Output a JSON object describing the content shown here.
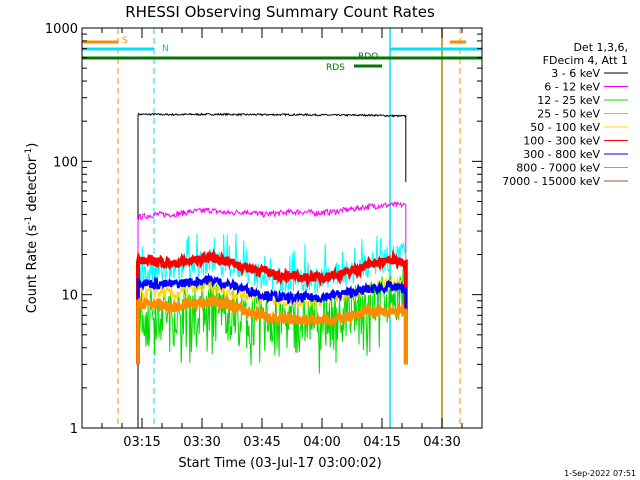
{
  "chart_data": {
    "type": "line",
    "title": "RHESSI Observing Summary Count Rates",
    "xlabel": "Start Time (03-Jul-17 03:00:02)",
    "ylabel_main": "Count Rate (s",
    "ylabel_sup1": "-1",
    "ylabel_mid": " detector",
    "ylabel_sup2": "-1",
    "ylabel_end": ")",
    "y_scale": "log",
    "ylim": [
      1,
      1000
    ],
    "xlim_minutes": [
      0,
      100
    ],
    "x_ticks": [
      {
        "m": 15,
        "label": "03:15"
      },
      {
        "m": 30,
        "label": "03:30"
      },
      {
        "m": 45,
        "label": "03:45"
      },
      {
        "m": 60,
        "label": "04:00"
      },
      {
        "m": 75,
        "label": "04:15"
      },
      {
        "m": 90,
        "label": "04:30"
      }
    ],
    "y_ticks": [
      {
        "v": 1,
        "label": "1"
      },
      {
        "v": 10,
        "label": "10"
      },
      {
        "v": 100,
        "label": "100"
      },
      {
        "v": 1000,
        "label": "1000"
      }
    ],
    "legend_header": [
      "Det 1,3,6,",
      "FDecim 4, Att 1"
    ],
    "legend_placement": "right",
    "series": [
      {
        "name": "3 - 6 keV",
        "color": "#000000",
        "values": [
          225,
          225,
          224,
          225,
          225,
          225,
          224,
          224,
          224,
          224,
          223,
          222,
          222,
          222,
          220,
          218
        ],
        "start": 14,
        "end": 81
      },
      {
        "name": "6 - 12 keV",
        "color": "#ff00ff",
        "values": [
          38,
          40,
          40,
          42,
          43,
          41,
          42,
          40,
          41,
          42,
          41,
          42,
          44,
          46,
          47,
          47
        ],
        "start": 14,
        "end": 81
      },
      {
        "name": "12 - 25 keV",
        "color": "#00dd00",
        "values": [
          8,
          8,
          7.5,
          8.5,
          9,
          8,
          7,
          7,
          6.5,
          6.5,
          7,
          7,
          8,
          9,
          10,
          11
        ],
        "start": 14,
        "end": 81
      },
      {
        "name": "25 - 50 keV",
        "color": "#00ffff",
        "values": [
          14,
          15,
          15,
          17,
          18,
          17,
          15,
          14,
          13,
          13,
          13,
          14,
          15,
          17,
          19,
          21
        ],
        "start": 14,
        "end": 81
      },
      {
        "name": "50 - 100 keV",
        "color": "#ffd700",
        "values": [
          10,
          10.5,
          10,
          11,
          11.5,
          10.5,
          10,
          9.5,
          9,
          9,
          9,
          9.5,
          10,
          11,
          12,
          12.5
        ],
        "start": 14,
        "end": 81
      },
      {
        "name": "100 - 300 keV",
        "color": "#ff0000",
        "values": [
          18,
          18,
          17,
          18,
          19,
          18,
          16,
          15,
          14,
          13.5,
          13.5,
          14,
          15,
          17,
          18,
          18
        ],
        "start": 14,
        "end": 81
      },
      {
        "name": "300 - 800 keV",
        "color": "#0000ff",
        "values": [
          12.5,
          12,
          12,
          12.5,
          13,
          12,
          11,
          10,
          9.5,
          9.5,
          9.5,
          10,
          10.5,
          11,
          11.5,
          11
        ],
        "start": 14,
        "end": 81
      },
      {
        "name": "800 - 7000 keV",
        "color": "#ff8c00",
        "values": [
          8.5,
          8.5,
          8,
          8.5,
          9,
          8.5,
          7.5,
          7,
          6.5,
          6.5,
          6.5,
          6.5,
          7,
          7.5,
          7.5,
          7.5
        ],
        "start": 14,
        "end": 81
      },
      {
        "name": "7000 - 15000 keV",
        "color": "#a0522d",
        "values": [],
        "start": 14,
        "end": 81
      }
    ],
    "flag_labels": {
      "saa": "S",
      "night": "N",
      "decimation": "RDO",
      "decimation2": "RDS"
    },
    "timestamp": "1-Sep-2022 07:51"
  }
}
